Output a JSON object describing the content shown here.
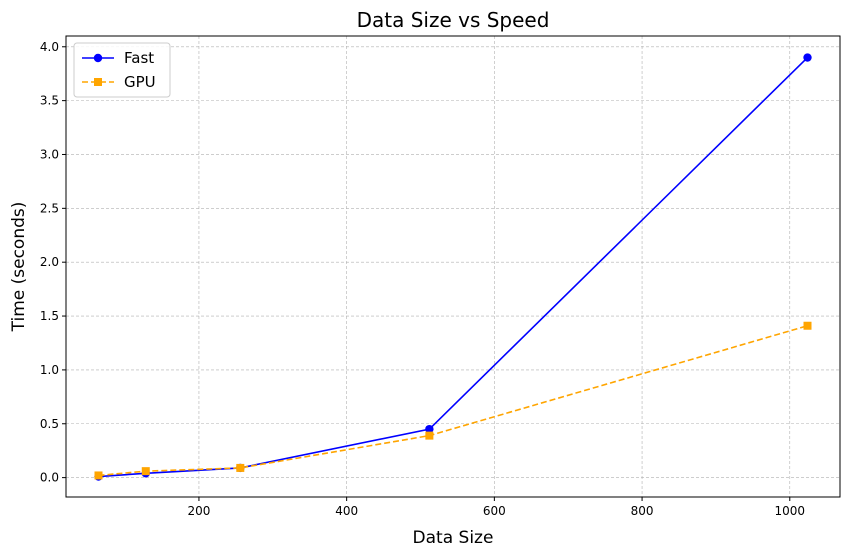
{
  "chart_data": {
    "type": "line",
    "title": "Data Size vs Speed",
    "xlabel": "Data Size",
    "ylabel": "Time (seconds)",
    "xlim": [
      20,
      1068
    ],
    "ylim": [
      -0.18,
      4.1
    ],
    "xticks": [
      200,
      400,
      600,
      800,
      1000
    ],
    "xtick_labels": [
      "200",
      "400",
      "600",
      "800",
      "1000"
    ],
    "yticks": [
      0.0,
      0.5,
      1.0,
      1.5,
      2.0,
      2.5,
      3.0,
      3.5,
      4.0
    ],
    "ytick_labels": [
      "0.0",
      "0.5",
      "1.0",
      "1.5",
      "2.0",
      "2.5",
      "3.0",
      "3.5",
      "4.0"
    ],
    "grid": true,
    "legend_position": "top-left",
    "x": [
      64,
      128,
      256,
      512,
      1024
    ],
    "series": [
      {
        "name": "Fast",
        "values": [
          0.01,
          0.04,
          0.09,
          0.45,
          3.9
        ],
        "color": "#0000ff",
        "marker": "circle",
        "line_style": "solid"
      },
      {
        "name": "GPU",
        "values": [
          0.02,
          0.06,
          0.09,
          0.39,
          1.41
        ],
        "color": "#ffa500",
        "marker": "square",
        "line_style": "dashed"
      }
    ]
  }
}
